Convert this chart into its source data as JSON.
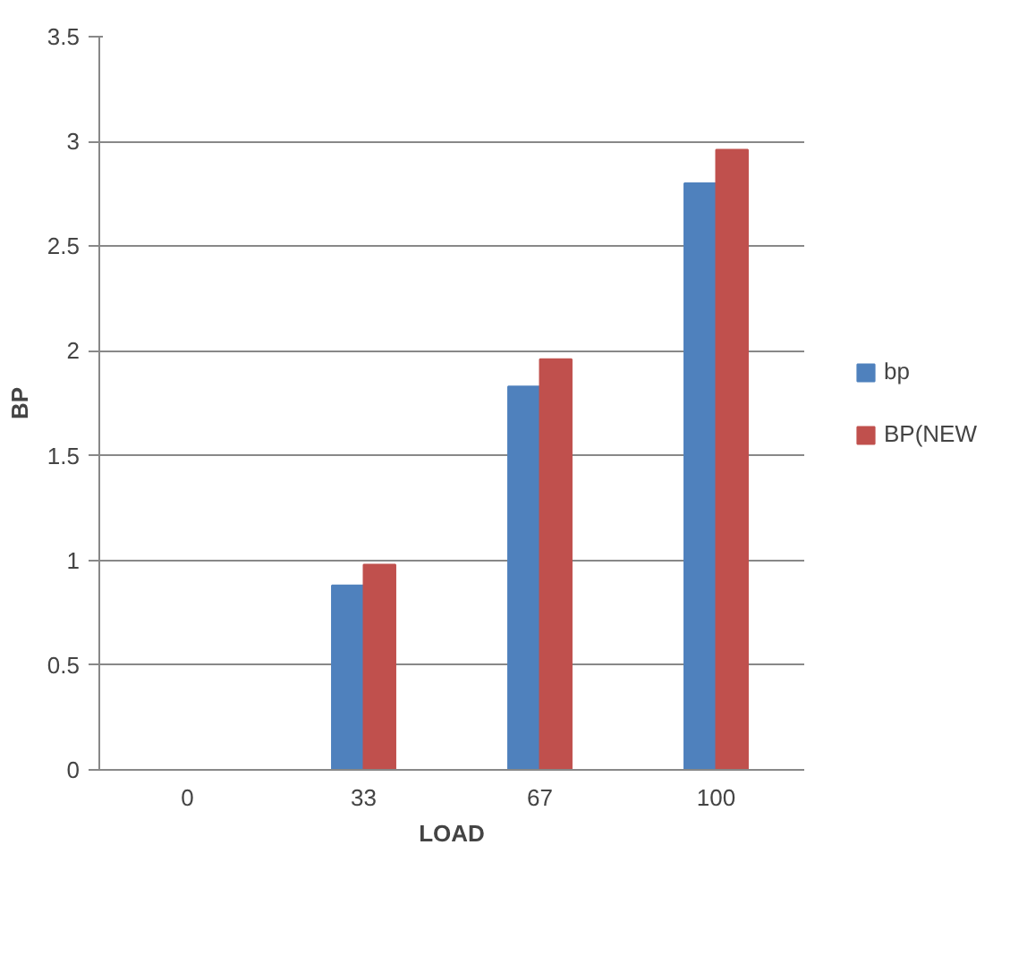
{
  "chart_data": {
    "type": "bar",
    "xlabel": "LOAD",
    "ylabel": "BP",
    "categories": [
      "0",
      "33",
      "67",
      "100"
    ],
    "series": [
      {
        "name": "bp",
        "color": "#4f81bd",
        "values": [
          0,
          0.88,
          1.83,
          2.8
        ]
      },
      {
        "name": "BP(NEW",
        "color": "#c0504d",
        "values": [
          0,
          0.98,
          1.96,
          2.96
        ]
      }
    ],
    "ylim": [
      0,
      3.5
    ],
    "yticks": [
      0,
      0.5,
      1,
      1.5,
      2,
      2.5,
      3,
      3.5
    ],
    "grid": "y",
    "legend": "right"
  }
}
